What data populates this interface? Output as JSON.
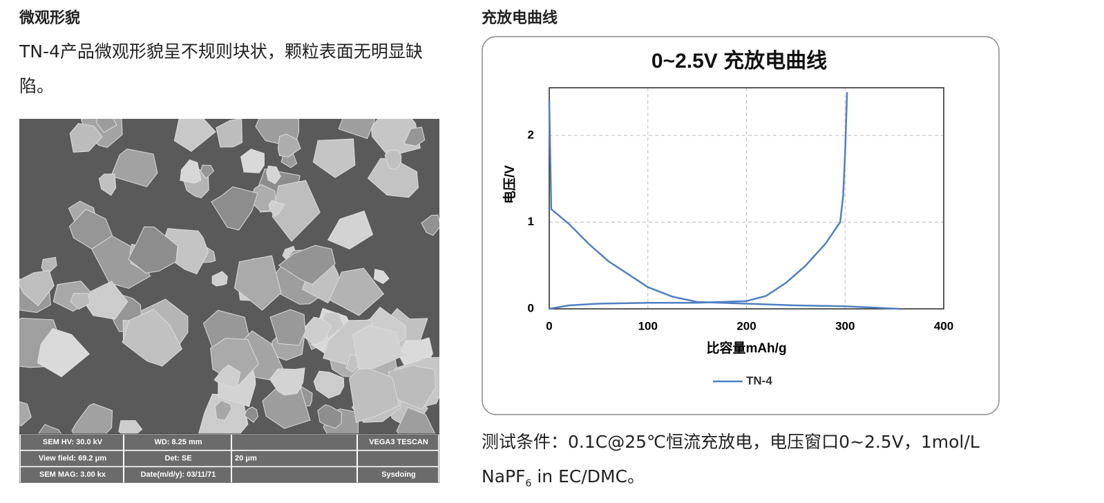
{
  "left": {
    "heading": "微观形貌",
    "description": "TN-4产品微观形貌呈不规则块状，颗粒表面无明显缺陷。",
    "sem_info": [
      [
        "SEM HV: 30.0 kV",
        "WD: 8.25 mm",
        "",
        "VEGA3 TESCAN"
      ],
      [
        "View field: 69.2 μm",
        "Det: SE",
        "20 μm",
        ""
      ],
      [
        "SEM MAG: 3.00 kx",
        "Date(m/d/y): 03/11/71",
        "",
        "Sysdoing"
      ]
    ]
  },
  "right": {
    "heading": "充放电曲线",
    "note_line1": "测试条件：0.1C@25℃恒流充放电，电压窗口0~2.5V，1mol/L",
    "note_line2": [
      "NaPF",
      "6",
      " in EC/DMC。"
    ]
  },
  "chart_data": {
    "type": "line",
    "title": "0~2.5V 充放电曲线",
    "x_label": "比容量mAh/g",
    "y_label": "电压/V",
    "xlim": [
      0,
      400
    ],
    "xticks": [
      0,
      100,
      200,
      300,
      400
    ],
    "ylim": [
      0,
      2.55
    ],
    "yticks": [
      0,
      1,
      2
    ],
    "grid": true,
    "legend": "bottom",
    "series": [
      {
        "name": "TN-4",
        "color": "#4f7fc2",
        "x": [
          0,
          2,
          20,
          40,
          60,
          80,
          100,
          125,
          150,
          200,
          250,
          300,
          355,
          null,
          0,
          20,
          50,
          100,
          150,
          200,
          220,
          240,
          260,
          280,
          295,
          298,
          300,
          302
        ],
        "values": [
          2.4,
          1.15,
          0.98,
          0.75,
          0.55,
          0.4,
          0.25,
          0.14,
          0.08,
          0.06,
          0.04,
          0.03,
          0,
          null,
          0,
          0.04,
          0.06,
          0.07,
          0.07,
          0.09,
          0.15,
          0.3,
          0.5,
          0.75,
          1.0,
          1.3,
          1.8,
          2.5
        ]
      }
    ]
  }
}
